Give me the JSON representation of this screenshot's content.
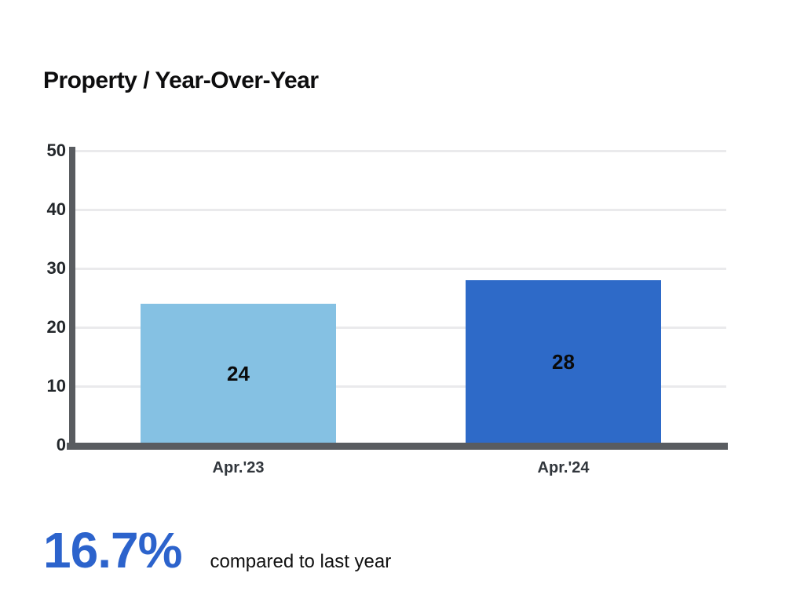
{
  "header": {
    "title": "Property / Year-Over-Year"
  },
  "chart_data": {
    "type": "bar",
    "title": "Property / Year-Over-Year",
    "categories": [
      "Apr.'23",
      "Apr.'24"
    ],
    "values": [
      24,
      28
    ],
    "value_labels": [
      "24",
      "28"
    ],
    "bar_colors": [
      "#85C1E3",
      "#2E6AC8"
    ],
    "ylim": [
      0,
      50
    ],
    "yticks": [
      0,
      10,
      20,
      30,
      40,
      50
    ],
    "grid": true,
    "legend": "none",
    "xlabel": "",
    "ylabel": "",
    "axis_color": "#595C60",
    "gridline_color": "#EAEAEC"
  },
  "footer": {
    "change_value": "16.7%",
    "change_note": "compared to last year",
    "accent_color": "#2C63CC"
  }
}
